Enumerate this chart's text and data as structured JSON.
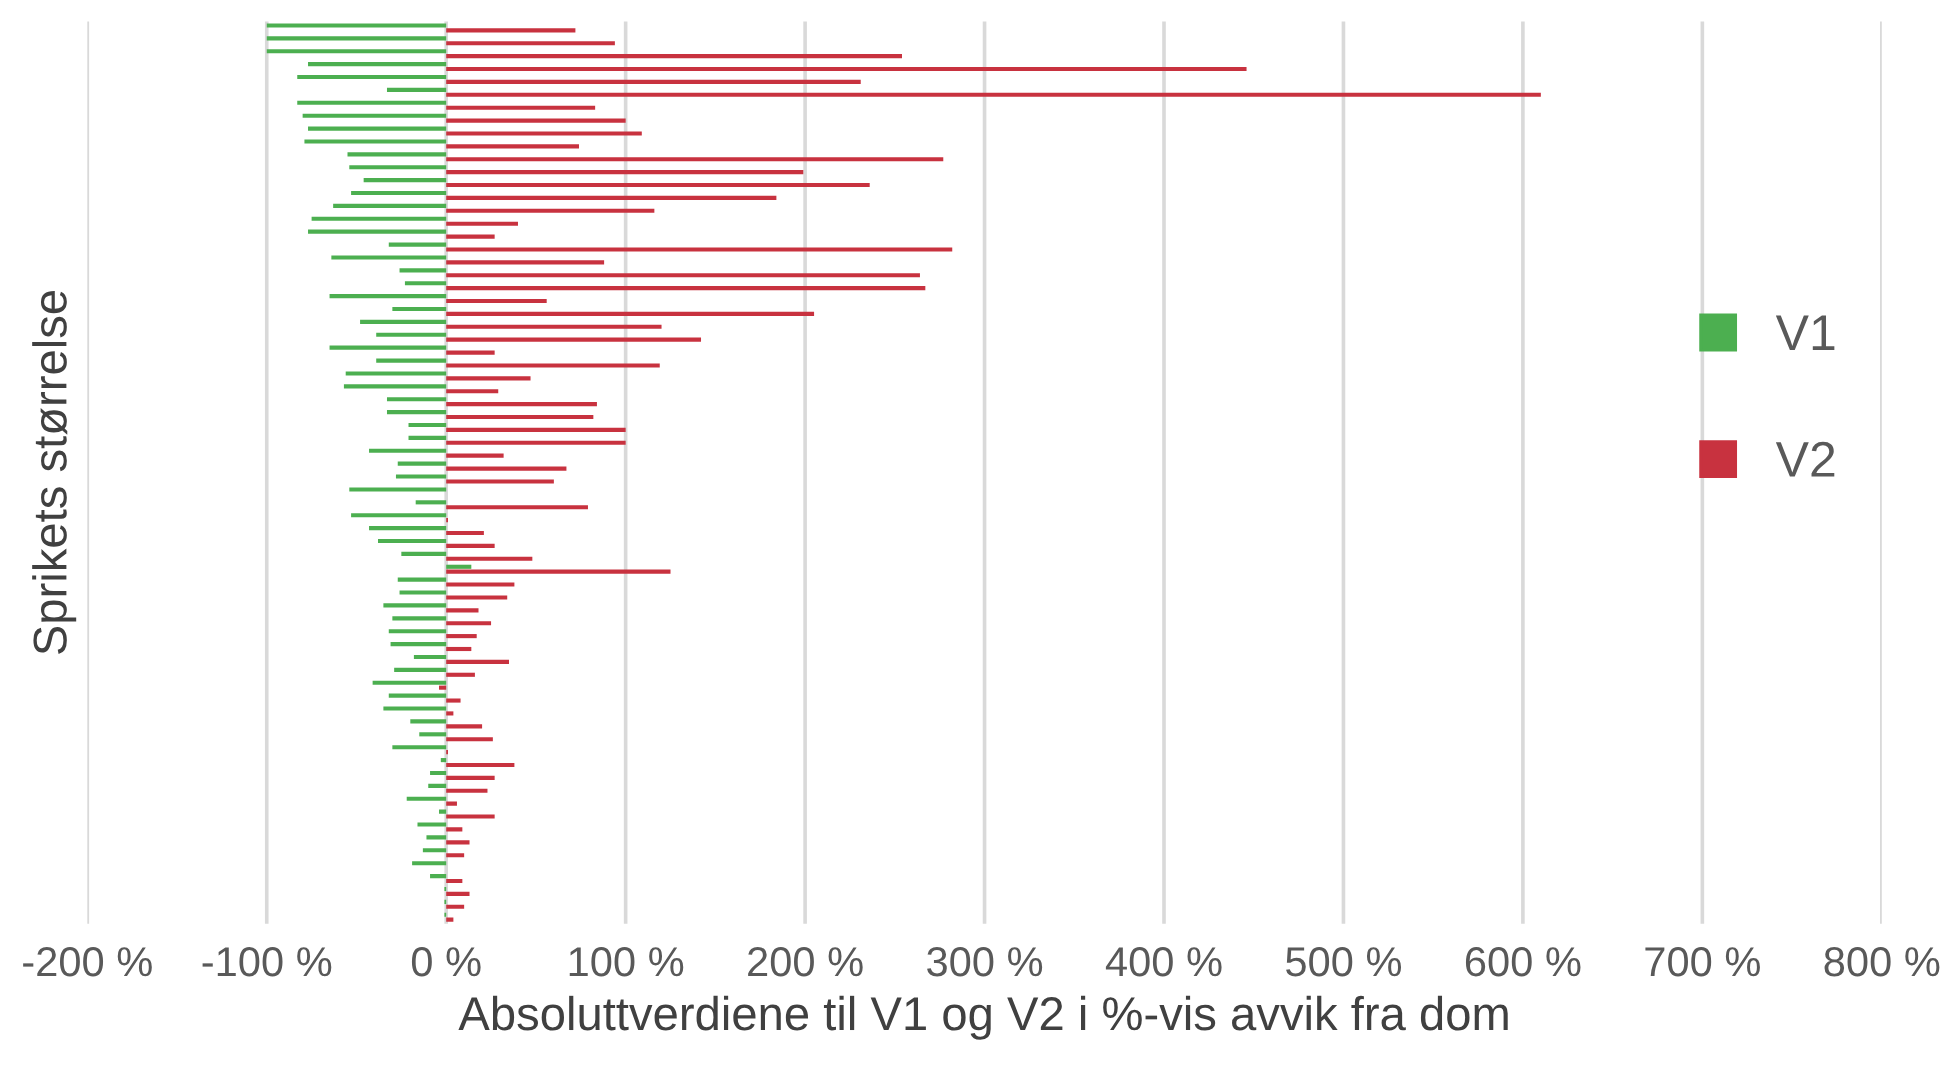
{
  "chart_data": {
    "type": "bar",
    "orientation": "horizontal",
    "xlabel": "Absoluttverdiene til V1 og V2 i %-vis avvik fra dom",
    "ylabel": "Sprikets størrelse",
    "categories": [
      null,
      null,
      null,
      null,
      null,
      null,
      null,
      null,
      null,
      null,
      null,
      null,
      null,
      null,
      null,
      null,
      null,
      null,
      null,
      null,
      null,
      null,
      null,
      null,
      null,
      null,
      null,
      null,
      null,
      null,
      null,
      null,
      null,
      null,
      null,
      null,
      null,
      null,
      null,
      null,
      null,
      null,
      null,
      null,
      null,
      null,
      null,
      null,
      null,
      null,
      null,
      null,
      null,
      null,
      null,
      null,
      null,
      null,
      null,
      null,
      null,
      null,
      null,
      null,
      null,
      null,
      null,
      null,
      null,
      null
    ],
    "series": [
      {
        "name": "V1",
        "color": "#4caf50",
        "values": [
          -100,
          -100,
          -100,
          -77,
          -83,
          -33,
          -83,
          -80,
          -77,
          -79,
          -55,
          -54,
          -46,
          -53,
          -63,
          -75,
          -77,
          -32,
          -64,
          -26,
          -23,
          -65,
          -30,
          -48,
          -39,
          -65,
          -39,
          -56,
          -57,
          -33,
          -33,
          -21,
          -21,
          -43,
          -27,
          -28,
          -54,
          -17,
          -53,
          -43,
          -38,
          -25,
          14,
          -27,
          -26,
          -35,
          -30,
          -32,
          -31,
          -18,
          -29,
          -41,
          -32,
          -35,
          -20,
          -15,
          -30,
          -3,
          -9,
          -10,
          -22,
          -4,
          -16,
          -11,
          -13,
          -19,
          -9,
          -1,
          -1,
          -1
        ]
      },
      {
        "name": "V2",
        "color": "#c8323f",
        "values": [
          72,
          94,
          254,
          446,
          231,
          610,
          83,
          100,
          109,
          74,
          277,
          199,
          236,
          184,
          116,
          40,
          27,
          282,
          88,
          264,
          267,
          56,
          205,
          120,
          142,
          27,
          119,
          47,
          29,
          84,
          82,
          100,
          100,
          32,
          67,
          60,
          0,
          79,
          1,
          21,
          27,
          48,
          125,
          38,
          34,
          18,
          25,
          17,
          14,
          35,
          16,
          -4,
          8,
          4,
          20,
          26,
          1,
          38,
          27,
          23,
          6,
          27,
          9,
          13,
          10,
          0,
          9,
          13,
          10,
          4
        ]
      }
    ],
    "xlim": [
      -200,
      800
    ],
    "xticks": [
      {
        "value": -200,
        "label": "-200 %"
      },
      {
        "value": -100,
        "label": "-100 %"
      },
      {
        "value": 0,
        "label": "0 %"
      },
      {
        "value": 100,
        "label": "100 %"
      },
      {
        "value": 200,
        "label": "200 %"
      },
      {
        "value": 300,
        "label": "300 %"
      },
      {
        "value": 400,
        "label": "400 %"
      },
      {
        "value": 500,
        "label": "500 %"
      },
      {
        "value": 600,
        "label": "600 %"
      },
      {
        "value": 700,
        "label": "700 %"
      },
      {
        "value": 800,
        "label": "800 %"
      }
    ],
    "grid": "x",
    "legend": "right",
    "tick_labels": "x"
  }
}
